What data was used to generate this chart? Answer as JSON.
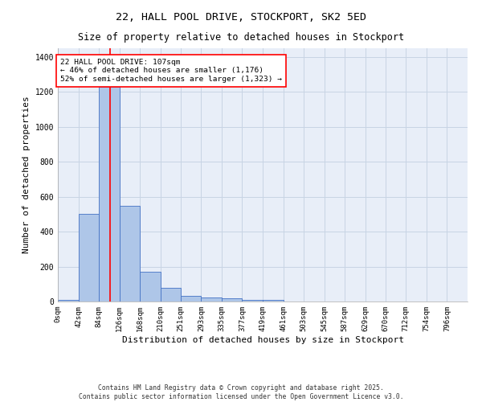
{
  "title": "22, HALL POOL DRIVE, STOCKPORT, SK2 5ED",
  "subtitle": "Size of property relative to detached houses in Stockport",
  "xlabel": "Distribution of detached houses by size in Stockport",
  "ylabel": "Number of detached properties",
  "bin_edges": [
    0,
    42,
    84,
    126,
    168,
    210,
    251,
    293,
    335,
    377,
    419,
    461,
    503,
    545,
    587,
    629,
    670,
    712,
    754,
    796,
    838
  ],
  "bar_heights": [
    10,
    500,
    1230,
    550,
    170,
    80,
    30,
    25,
    20,
    10,
    10,
    0,
    0,
    0,
    0,
    0,
    0,
    0,
    0,
    0
  ],
  "bar_color": "#aec6e8",
  "bar_edge_color": "#4472c4",
  "grid_color": "#c8d4e4",
  "bg_color": "#e8eef8",
  "red_line_x": 107,
  "annotation_text": "22 HALL POOL DRIVE: 107sqm\n← 46% of detached houses are smaller (1,176)\n52% of semi-detached houses are larger (1,323) →",
  "ylim": [
    0,
    1450
  ],
  "yticks": [
    0,
    200,
    400,
    600,
    800,
    1000,
    1200,
    1400
  ],
  "footer_line1": "Contains HM Land Registry data © Crown copyright and database right 2025.",
  "footer_line2": "Contains public sector information licensed under the Open Government Licence v3.0.",
  "title_fontsize": 9.5,
  "subtitle_fontsize": 8.5,
  "tick_label_fontsize": 6.5,
  "axis_label_fontsize": 8,
  "annotation_fontsize": 6.8,
  "footer_fontsize": 5.8
}
